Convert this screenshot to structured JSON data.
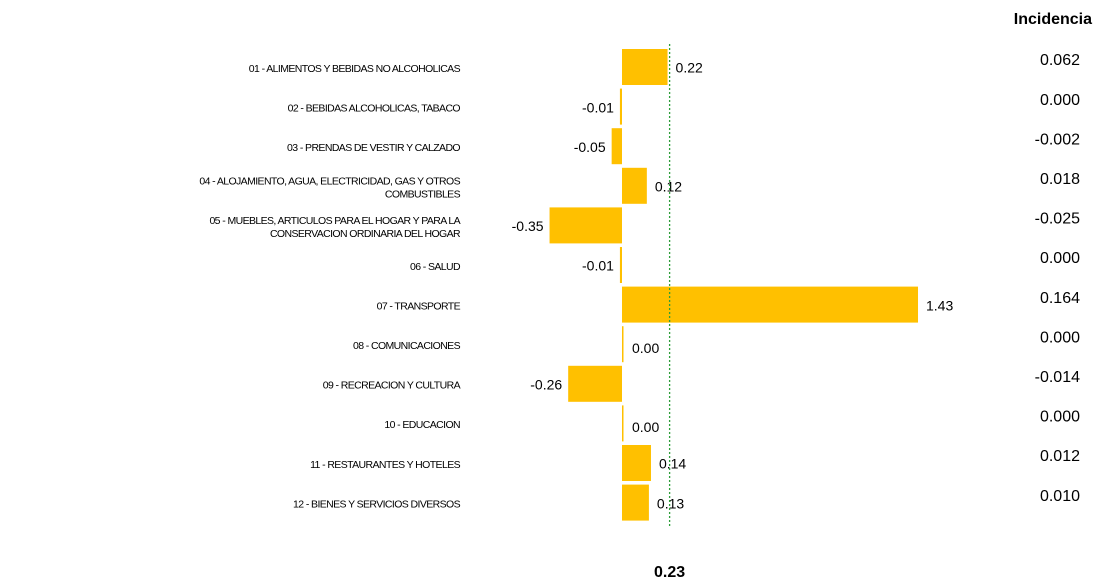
{
  "chart_data": {
    "type": "bar",
    "orientation": "horizontal",
    "categories": [
      "01 - ALIMENTOS Y BEBIDAS NO ALCOHOLICAS",
      "02 - BEBIDAS ALCOHOLICAS, TABACO",
      "03 - PRENDAS DE VESTIR Y CALZADO",
      "04 - ALOJAMIENTO, AGUA, ELECTRICIDAD, GAS Y OTROS\nCOMBUSTIBLES",
      "05 - MUEBLES, ARTICULOS PARA EL HOGAR Y PARA LA\nCONSERVACION ORDINARIA DEL HOGAR",
      "06 - SALUD",
      "07 - TRANSPORTE",
      "08 - COMUNICACIONES",
      "09 - RECREACION Y CULTURA",
      "10 - EDUCACION",
      "11 - RESTAURANTES Y HOTELES",
      "12 - BIENES Y SERVICIOS DIVERSOS"
    ],
    "values": [
      0.22,
      -0.01,
      -0.05,
      0.12,
      -0.35,
      -0.01,
      1.43,
      0,
      -0.26,
      0,
      0.14,
      0.13
    ],
    "value_labels": [
      "0.22",
      "-0.01",
      "-0.05",
      "0.12",
      "-0.35",
      "-0.01",
      "1.43",
      "0.00",
      "-0.26",
      "0.00",
      "0.14",
      "0.13"
    ],
    "color": "#ffc000",
    "reference_line": {
      "value": 0.23,
      "color": "#2e9e3a"
    },
    "incidencia": {
      "title": "Incidencia",
      "values": [
        "0.062",
        "0.000",
        "-0.002",
        "0.018",
        "-0.025",
        "0.000",
        "0.164",
        "0.000",
        "-0.014",
        "0.000",
        "0.012",
        "0.010"
      ]
    }
  }
}
